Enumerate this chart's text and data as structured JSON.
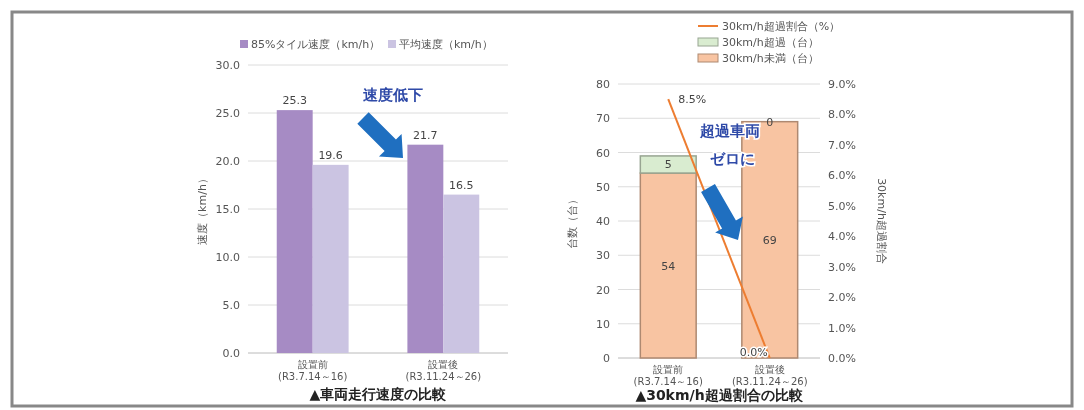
{
  "chart_data": [
    {
      "type": "bar",
      "title": "▲車両走行速度の比較",
      "ylabel": "速度（km/h）",
      "categories": [
        "設置前\n(R3.7.14～16)",
        "設置後\n(R3.11.24～26)"
      ],
      "series": [
        {
          "name": "85%タイル速度（km/h）",
          "color": "#a68bc4",
          "values": [
            25.3,
            21.7
          ],
          "value_labels": [
            "25.3",
            "21.7"
          ]
        },
        {
          "name": "平均速度（km/h）",
          "color": "#cbc4e2",
          "values": [
            19.6,
            16.5
          ],
          "value_labels": [
            "19.6",
            "16.5"
          ]
        }
      ],
      "ylim": [
        0,
        30
      ],
      "yticks": [
        {
          "value": 0,
          "label": "0.0"
        },
        {
          "value": 5,
          "label": "5.0"
        },
        {
          "value": 10,
          "label": "10.0"
        },
        {
          "value": 15,
          "label": "15.0"
        },
        {
          "value": 20,
          "label": "20.0"
        },
        {
          "value": 25,
          "label": "25.0"
        },
        {
          "value": 30,
          "label": "30.0"
        }
      ],
      "grid": "y",
      "legend": "top",
      "annotations": [
        "速度低下"
      ]
    },
    {
      "type": "bar",
      "title": "▲30km/h超過割合の比較",
      "ylabel": "台数（台）",
      "y2label": "30km/h超過割合",
      "categories": [
        "設置前\n(R3.7.14～16)",
        "設置後\n(R3.11.24～26)"
      ],
      "stacked": true,
      "series": [
        {
          "name": "30km/h未満（台）",
          "color": "#f8c4a2",
          "values": [
            54,
            69
          ],
          "value_labels": [
            "54",
            "69"
          ]
        },
        {
          "name": "30km/h超過（台）",
          "color": "#d9ecd0",
          "values": [
            5,
            0
          ],
          "value_labels": [
            "5",
            "0"
          ]
        },
        {
          "name": "30km/h超過割合（%）",
          "type": "line",
          "axis": "y2",
          "color": "#ed7d31",
          "values": [
            8.5,
            0
          ],
          "value_labels": [
            "8.5%",
            "0.0%"
          ]
        }
      ],
      "ylim": [
        0,
        80
      ],
      "yticks": [
        0,
        10,
        20,
        30,
        40,
        50,
        60,
        70,
        80
      ],
      "y2lim": [
        0,
        9
      ],
      "y2ticks": [
        {
          "value": 0,
          "label": "0.0%"
        },
        {
          "value": 1,
          "label": "1.0%"
        },
        {
          "value": 2,
          "label": "2.0%"
        },
        {
          "value": 3,
          "label": "3.0%"
        },
        {
          "value": 4,
          "label": "4.0%"
        },
        {
          "value": 5,
          "label": "5.0%"
        },
        {
          "value": 6,
          "label": "6.0%"
        },
        {
          "value": 7,
          "label": "7.0%"
        },
        {
          "value": 8,
          "label": "8.0%"
        },
        {
          "value": 9,
          "label": "9.0%"
        }
      ],
      "grid": "y",
      "legend": "top",
      "annotations": [
        "超過車両",
        "ゼロに"
      ]
    }
  ]
}
